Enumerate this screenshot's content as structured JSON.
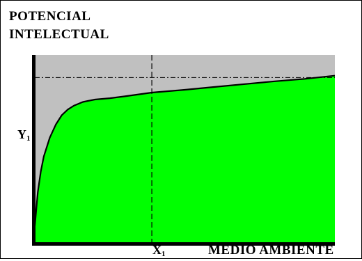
{
  "chart_data": {
    "type": "area",
    "title": "",
    "ylabel_lines": [
      "POTENCIAL",
      "INTELECTUAL"
    ],
    "xlabel": "MEDIO AMBIENTE",
    "x_tick": {
      "base": "X",
      "sub": "1",
      "value": 0.39
    },
    "y_tick": {
      "base": "Y",
      "sub": "1",
      "value": 0.88
    },
    "xlim": [
      0,
      1
    ],
    "ylim": [
      0,
      1
    ],
    "grid": false,
    "series": [
      {
        "x": [
          0,
          0.01,
          0.02,
          0.03,
          0.05,
          0.07,
          0.09,
          0.11,
          0.13,
          0.16,
          0.2,
          0.25,
          0.3,
          0.39,
          0.5,
          0.6,
          0.7,
          0.8,
          0.9,
          1.0
        ],
        "y": [
          0.09,
          0.27,
          0.38,
          0.46,
          0.56,
          0.63,
          0.68,
          0.71,
          0.73,
          0.75,
          0.763,
          0.77,
          0.78,
          0.8,
          0.815,
          0.83,
          0.845,
          0.86,
          0.873,
          0.89
        ]
      }
    ],
    "colors": {
      "background": "#c0c0c0",
      "fill": "#00ff00",
      "line": "#000000",
      "axis": "#000000"
    }
  }
}
